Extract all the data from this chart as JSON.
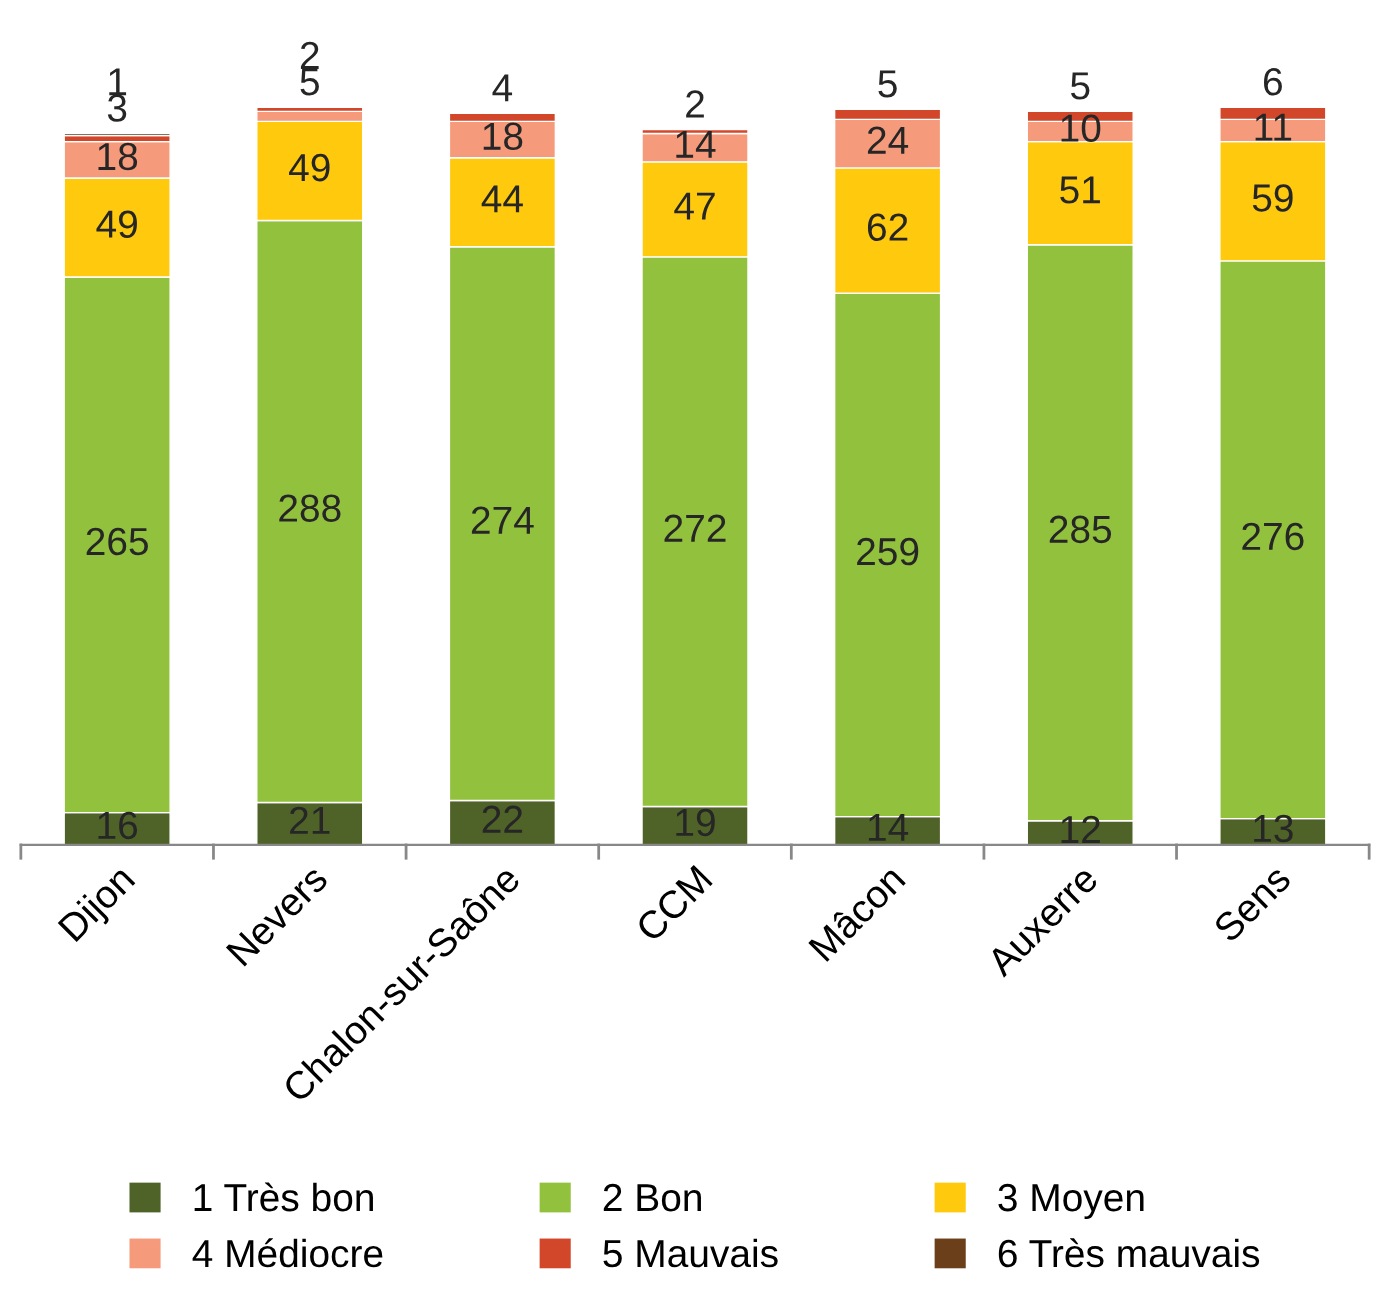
{
  "chart_data": {
    "type": "bar",
    "stacked": true,
    "data_labels": true,
    "legend": "bottom",
    "grid": false,
    "categories": [
      "Dijon",
      "Nevers",
      "Chalon-sur-Saône",
      "CCM",
      "Mâcon",
      "Auxerre",
      "Sens"
    ],
    "series": [
      {
        "name": "1 Très bon",
        "color": "#4f6228",
        "values": [
          16,
          21,
          22,
          19,
          14,
          12,
          13
        ]
      },
      {
        "name": "2 Bon",
        "color": "#92c13e",
        "values": [
          265,
          288,
          274,
          272,
          259,
          285,
          276
        ]
      },
      {
        "name": "3 Moyen",
        "color": "#ffc90e",
        "values": [
          49,
          49,
          44,
          47,
          62,
          51,
          59
        ]
      },
      {
        "name": "4 Médiocre",
        "color": "#f59b7c",
        "values": [
          18,
          5,
          18,
          14,
          24,
          10,
          11
        ]
      },
      {
        "name": "5 Mauvais",
        "color": "#d2472a",
        "values": [
          3,
          2,
          4,
          2,
          5,
          5,
          6
        ]
      },
      {
        "name": "6 Très mauvais",
        "color": "#6b3f1a",
        "values": [
          1,
          null,
          null,
          null,
          null,
          null,
          null
        ]
      }
    ]
  }
}
